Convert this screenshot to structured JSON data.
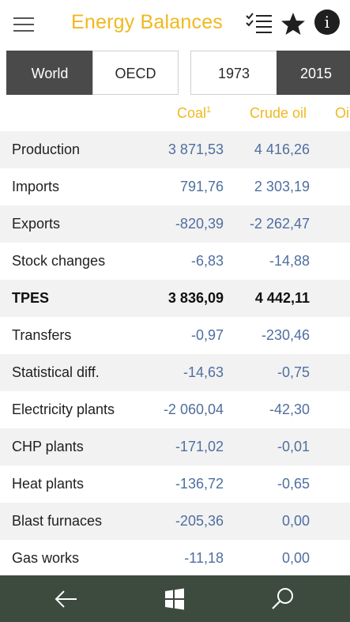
{
  "header": {
    "title": "Energy Balances",
    "icons": [
      "menu-icon",
      "checklist-icon",
      "star-icon",
      "info-icon"
    ],
    "info_glyph": "i"
  },
  "region_tabs": [
    {
      "label": "World",
      "selected": true
    },
    {
      "label": "OECD",
      "selected": false
    }
  ],
  "year_tabs": [
    {
      "label": "1973",
      "selected": false
    },
    {
      "label": "2015",
      "selected": true
    }
  ],
  "columns": [
    {
      "label": "Coal",
      "footnote": "1"
    },
    {
      "label": "Crude oil",
      "footnote": ""
    },
    {
      "label": "Oi",
      "footnote": ""
    }
  ],
  "rows": [
    {
      "label": "Production",
      "coal": "3 871,53",
      "crude": "4 416,26"
    },
    {
      "label": "Imports",
      "coal": "791,76",
      "crude": "2 303,19"
    },
    {
      "label": "Exports",
      "coal": "-820,39",
      "crude": "-2 262,47"
    },
    {
      "label": "Stock changes",
      "coal": "-6,83",
      "crude": "-14,88"
    },
    {
      "label": "TPES",
      "coal": "3 836,09",
      "crude": "4 442,11"
    },
    {
      "label": "Transfers",
      "coal": "-0,97",
      "crude": "-230,46"
    },
    {
      "label": "Statistical diff.",
      "coal": "-14,63",
      "crude": "-0,75"
    },
    {
      "label": "Electricity plants",
      "coal": "-2 060,04",
      "crude": "-42,30"
    },
    {
      "label": "CHP plants",
      "coal": "-171,02",
      "crude": "-0,01"
    },
    {
      "label": "Heat plants",
      "coal": "-136,72",
      "crude": "-0,65"
    },
    {
      "label": "Blast furnaces",
      "coal": "-205,36",
      "crude": "0,00"
    },
    {
      "label": "Gas works",
      "coal": "-11,18",
      "crude": "0,00"
    }
  ],
  "app_bar": {
    "icons": [
      "back-arrow-icon",
      "windows-logo-icon",
      "search-icon"
    ]
  },
  "colors": {
    "accent": "#f0b81e",
    "value_text": "#4f6f9f",
    "selected_tab": "#4a4a4a",
    "app_bar": "#3d4a3e"
  }
}
